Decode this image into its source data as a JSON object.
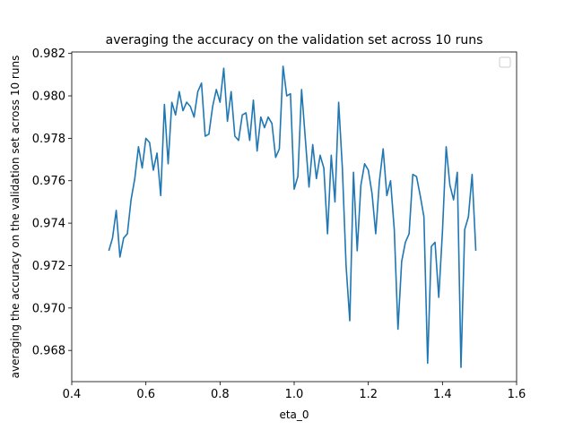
{
  "chart_data": {
    "type": "line",
    "title": "averaging the accuracy on the validation set across 10 runs",
    "xlabel": "eta_0",
    "ylabel": "averaging the accuracy on the validation set across 10 runs",
    "xlim": [
      0.4,
      1.6
    ],
    "ylim": [
      0.96653,
      0.98207
    ],
    "xticks": [
      "0.4",
      "0.6",
      "0.8",
      "1.0",
      "1.2",
      "1.4",
      "1.6"
    ],
    "yticks": [
      "0.968",
      "0.970",
      "0.972",
      "0.974",
      "0.976",
      "0.978",
      "0.980",
      "0.982"
    ],
    "grid": false,
    "legend": {
      "placement": "top-right",
      "entries": []
    },
    "series": [
      {
        "color": "#1f77b4",
        "x": [
          0.5,
          0.51,
          0.52,
          0.53,
          0.54,
          0.55,
          0.56,
          0.57,
          0.58,
          0.59,
          0.6,
          0.61,
          0.62,
          0.63,
          0.64,
          0.65,
          0.66,
          0.67,
          0.68,
          0.69,
          0.7,
          0.71,
          0.72,
          0.73,
          0.74,
          0.75,
          0.76,
          0.77,
          0.78,
          0.79,
          0.8,
          0.81,
          0.82,
          0.83,
          0.84,
          0.85,
          0.86,
          0.87,
          0.88,
          0.89,
          0.9,
          0.91,
          0.92,
          0.93,
          0.94,
          0.95,
          0.96,
          0.97,
          0.98,
          0.99,
          1.0,
          1.01,
          1.02,
          1.03,
          1.04,
          1.05,
          1.06,
          1.07,
          1.08,
          1.09,
          1.1,
          1.11,
          1.12,
          1.13,
          1.14,
          1.15,
          1.16,
          1.17,
          1.18,
          1.19,
          1.2,
          1.21,
          1.22,
          1.23,
          1.24,
          1.25,
          1.26,
          1.27,
          1.28,
          1.29,
          1.3,
          1.31,
          1.32,
          1.33,
          1.34,
          1.35,
          1.36,
          1.37,
          1.38,
          1.39,
          1.4,
          1.41,
          1.42,
          1.43,
          1.44,
          1.45,
          1.46,
          1.47,
          1.48,
          1.49
        ],
        "y": [
          0.9727,
          0.9733,
          0.9746,
          0.9724,
          0.9733,
          0.9735,
          0.9751,
          0.9761,
          0.9776,
          0.9766,
          0.978,
          0.9778,
          0.9765,
          0.9773,
          0.9753,
          0.9796,
          0.9768,
          0.9797,
          0.9791,
          0.9802,
          0.9793,
          0.9797,
          0.9795,
          0.979,
          0.9802,
          0.9806,
          0.9781,
          0.9782,
          0.9795,
          0.9803,
          0.9797,
          0.9813,
          0.9788,
          0.9802,
          0.9781,
          0.9779,
          0.9791,
          0.9792,
          0.9779,
          0.9798,
          0.9774,
          0.979,
          0.9785,
          0.979,
          0.9787,
          0.9771,
          0.9775,
          0.9814,
          0.98,
          0.9801,
          0.9756,
          0.9762,
          0.9803,
          0.978,
          0.9757,
          0.9777,
          0.9761,
          0.9772,
          0.9766,
          0.9735,
          0.9772,
          0.975,
          0.9797,
          0.9766,
          0.972,
          0.9694,
          0.9764,
          0.9727,
          0.9758,
          0.9768,
          0.9765,
          0.9754,
          0.9735,
          0.976,
          0.9775,
          0.9753,
          0.976,
          0.9737,
          0.969,
          0.9722,
          0.9731,
          0.9735,
          0.9763,
          0.9762,
          0.9753,
          0.9743,
          0.9674,
          0.9729,
          0.9731,
          0.9705,
          0.9736,
          0.9776,
          0.9758,
          0.9751,
          0.9764,
          0.9672,
          0.9737,
          0.9743,
          0.9763,
          0.9727
        ]
      }
    ]
  }
}
